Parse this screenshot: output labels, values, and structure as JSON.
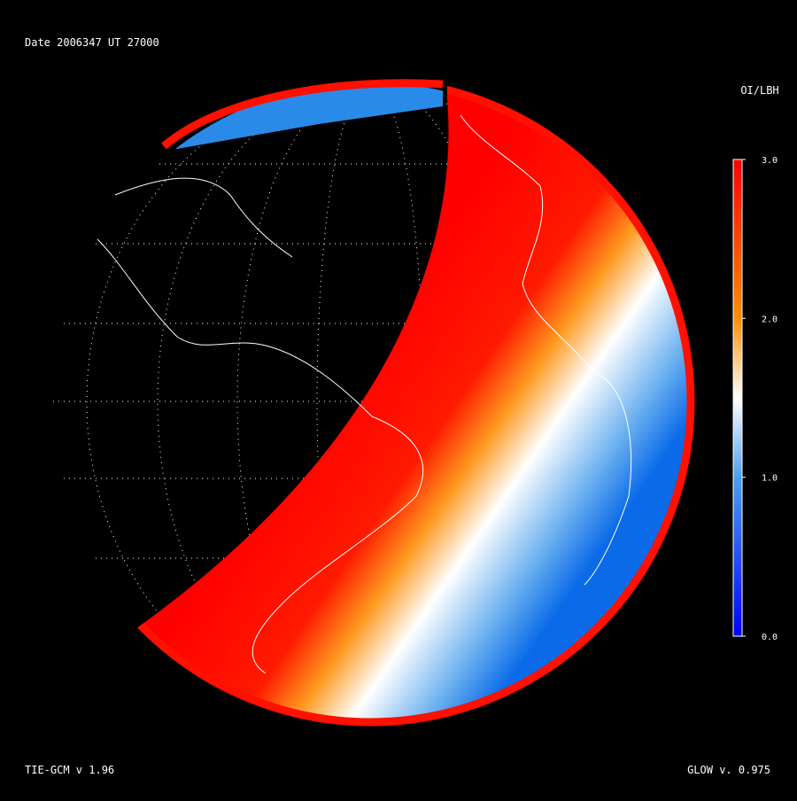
{
  "header": {
    "title": "Date 2006347  UT 27000"
  },
  "colorbar": {
    "title": "OI/LBH",
    "range": [
      0,
      3
    ],
    "ticks": [
      {
        "value": 3,
        "label": "3.0"
      },
      {
        "value": 2,
        "label": "2.0"
      },
      {
        "value": 1,
        "label": "1.0"
      },
      {
        "value": 0,
        "label": "0.0"
      }
    ]
  },
  "footer": {
    "left": "TIE-GCM v 1.96",
    "right": "GLOW v. 0.975"
  }
}
